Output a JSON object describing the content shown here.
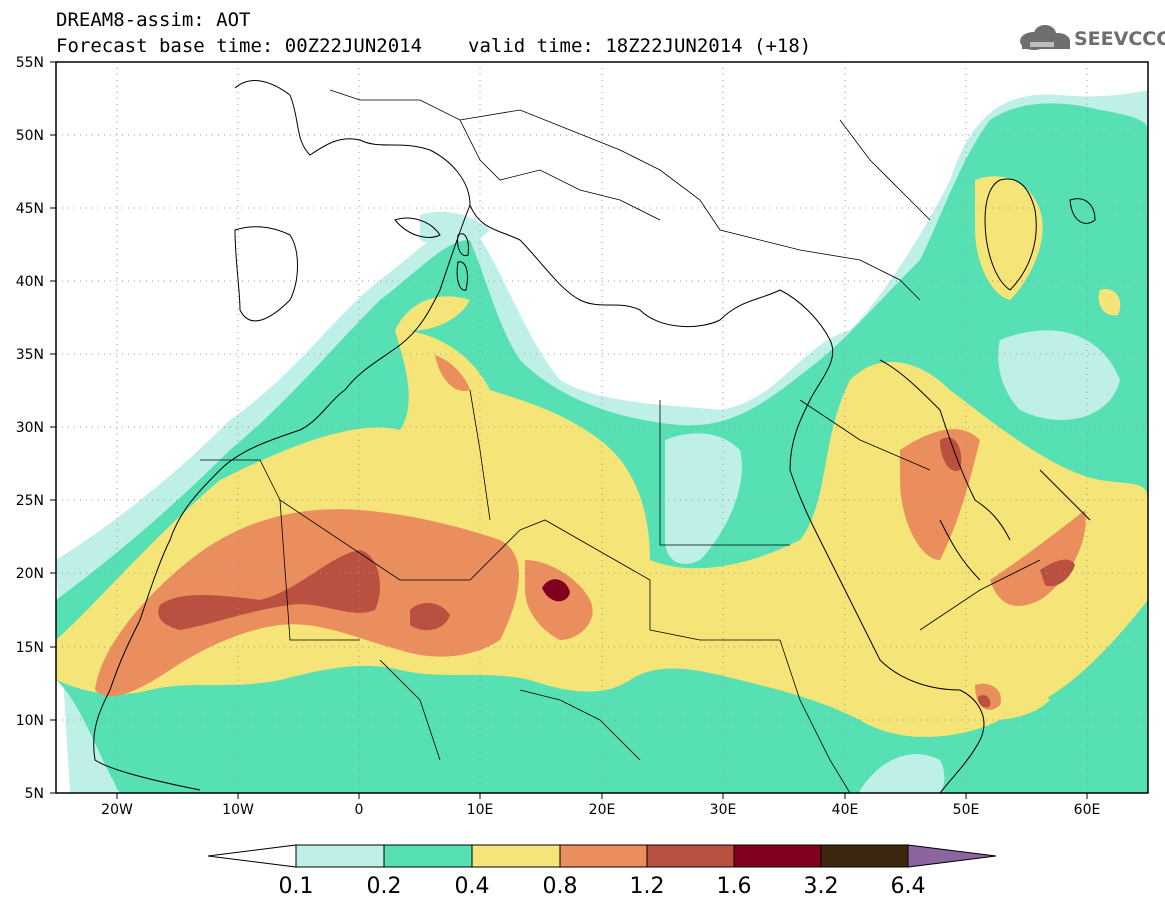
{
  "header": {
    "title_line1": "DREAM8-assim: AOT",
    "base_time": "Forecast base time: 00Z22JUN2014",
    "valid_time": "valid time: 18Z22JUN2014 (+18)"
  },
  "logo": {
    "text": "SEEVCCC",
    "color": "#6e6e6e"
  },
  "map": {
    "lon_range": [
      -25,
      65
    ],
    "lat_range": [
      5,
      55
    ],
    "lat_labels": [
      "55N",
      "50N",
      "45N",
      "40N",
      "35N",
      "30N",
      "25N",
      "20N",
      "15N",
      "10N",
      "5N"
    ],
    "lon_labels": [
      "20W",
      "10W",
      "0",
      "10E",
      "20E",
      "30E",
      "40E",
      "50E",
      "60E"
    ],
    "grid": "dotted"
  },
  "colorbar": {
    "levels": [
      "0.1",
      "0.2",
      "0.4",
      "0.8",
      "1.2",
      "1.6",
      "3.2",
      "6.4"
    ],
    "colors": [
      "#ffffff",
      "#bff0e8",
      "#56e0b4",
      "#f5e477",
      "#eb8e5e",
      "#b95040",
      "#800020",
      "#3d2710",
      "#8c64a0"
    ]
  }
}
